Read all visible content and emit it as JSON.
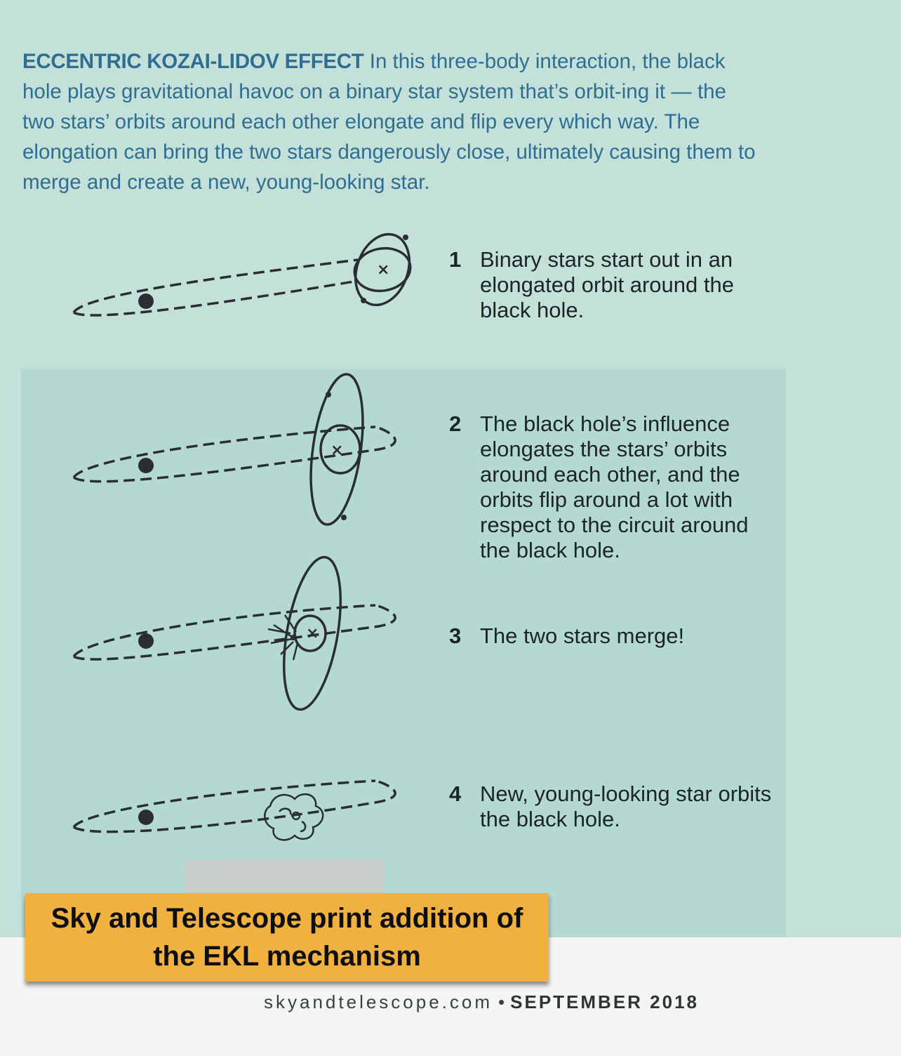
{
  "intro": {
    "heading": "ECCENTRIC KOZAI-LIDOV EFFECT",
    "body": " In this three-body interaction, the black hole plays gravitational havoc on a binary star system that’s orbit-ing it — the two stars’ orbits around each other elongate and flip every which way. The elongation can bring the two stars dangerously close, ultimately causing them to merge and create a new, young-looking star."
  },
  "steps": [
    {
      "number": "1",
      "text": "Binary stars start out in an elongated orbit around the black hole."
    },
    {
      "number": "2",
      "text": "The black hole’s influence elongates the stars’ orbits around each other, and the orbits flip around a lot with respect to the circuit around the black hole."
    },
    {
      "number": "3",
      "text": "The two stars merge!"
    },
    {
      "number": "4",
      "text": "New, young-looking star orbits the black hole."
    }
  ],
  "caption": "Sky and Telescope print addition of the EKL mechanism",
  "footer": {
    "site": "skyandtelescope.com",
    "bullet": "•",
    "date": "SEPTEMBER 2018"
  }
}
